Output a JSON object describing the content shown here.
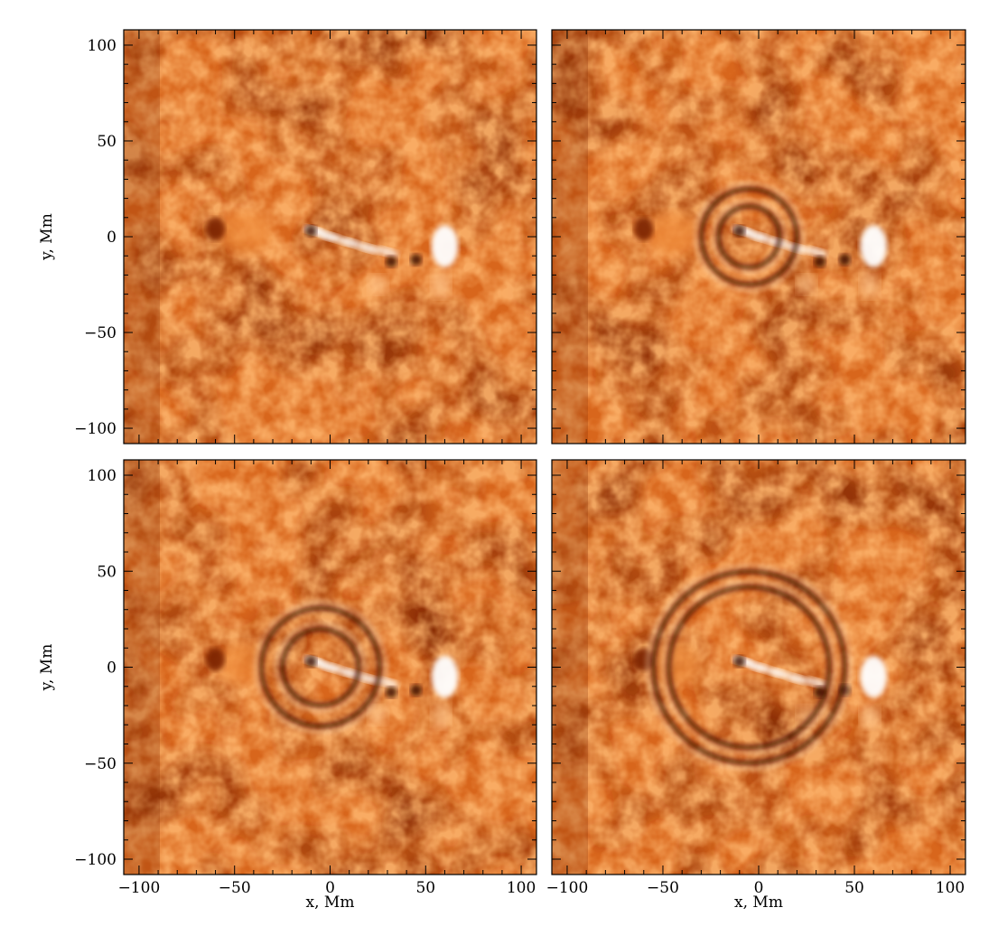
{
  "figure": {
    "axes": {
      "xlabel": "x, Mm",
      "ylabel": "y, Mm",
      "xticks": [
        "-100",
        "-50",
        "0",
        "50",
        "100"
      ],
      "yticks": [
        "100",
        "50",
        "0",
        "-50",
        "-100"
      ],
      "range": [
        -108,
        108
      ]
    },
    "colormap": [
      "#7a2200",
      "#b23f0a",
      "#d8661c",
      "#f08c3a",
      "#ffc890",
      "#ffffff"
    ],
    "panels": [
      {
        "name": "panel-top-left",
        "show_ylabel": true,
        "show_xlabel": false,
        "ring_radii_mm": []
      },
      {
        "name": "panel-top-right",
        "show_ylabel": false,
        "show_xlabel": false,
        "ring_radii_mm": [
          16,
          25
        ]
      },
      {
        "name": "panel-bottom-left",
        "show_ylabel": true,
        "show_xlabel": true,
        "ring_radii_mm": [
          20,
          31
        ]
      },
      {
        "name": "panel-bottom-right",
        "show_ylabel": false,
        "show_xlabel": true,
        "ring_radii_mm": [
          42,
          50
        ]
      }
    ],
    "ring_center_mm": [
      -5,
      0
    ]
  }
}
